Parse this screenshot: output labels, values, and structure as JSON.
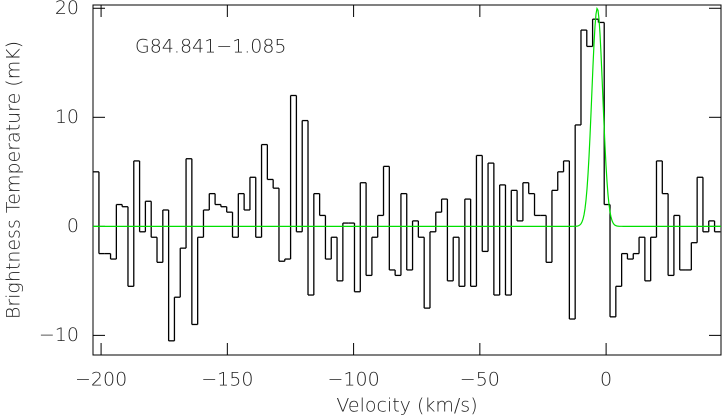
{
  "chart_data": {
    "type": "step",
    "annotation": "G84.841−1.085",
    "xlabel": "Velocity (km/s)",
    "ylabel": "Brightness Temperature (mK)",
    "xlim": [
      -203.2,
      45.5
    ],
    "ylim": [
      -11.8,
      20.3
    ],
    "xticks": [
      {
        "value": -200,
        "label": "−200"
      },
      {
        "value": -150,
        "label": "−150"
      },
      {
        "value": -100,
        "label": "−100"
      },
      {
        "value": -50,
        "label": "−50"
      },
      0
    ],
    "yticks": [
      {
        "value": -10,
        "label": "−10"
      },
      0,
      10,
      20
    ],
    "series": [
      {
        "color": "#000000",
        "x": [
          -202.0,
          -199.7,
          -197.4,
          -195.1,
          -192.8,
          -190.5,
          -188.2,
          -185.9,
          -183.6,
          -181.3,
          -179.0,
          -176.7,
          -174.4,
          -172.1,
          -169.8,
          -167.5,
          -165.2,
          -162.9,
          -160.6,
          -158.3,
          -156.0,
          -153.7,
          -151.4,
          -149.1,
          -146.8,
          -144.5,
          -142.2,
          -139.9,
          -137.6,
          -135.3,
          -133.0,
          -130.7,
          -128.4,
          -126.1,
          -123.8,
          -121.5,
          -119.2,
          -116.9,
          -114.6,
          -112.3,
          -110.0,
          -107.7,
          -105.4,
          -103.1,
          -100.8,
          -98.5,
          -96.2,
          -93.9,
          -91.6,
          -89.3,
          -87.0,
          -84.7,
          -82.4,
          -80.1,
          -77.8,
          -75.5,
          -73.2,
          -70.9,
          -68.6,
          -66.3,
          -64.0,
          -61.7,
          -59.4,
          -57.1,
          -54.8,
          -52.5,
          -50.2,
          -47.9,
          -45.6,
          -43.3,
          -41.0,
          -38.7,
          -36.4,
          -34.1,
          -31.8,
          -29.5,
          -27.2,
          -24.9,
          -22.6,
          -20.3,
          -18.0,
          -15.7,
          -13.4,
          -11.1,
          -8.8,
          -6.5,
          -4.2,
          -1.9,
          0.4,
          2.7,
          5.0,
          7.3,
          9.6,
          11.9,
          14.2,
          16.5,
          18.8,
          21.1,
          23.4,
          25.7,
          28.0,
          30.3,
          32.6,
          34.9,
          37.2,
          39.5,
          41.8,
          44.1
        ],
        "values": [
          5,
          -2.5,
          -2.5,
          -3,
          2,
          1.8,
          -5.5,
          6,
          -0.5,
          2.3,
          -1,
          -3.3,
          1.5,
          -10.5,
          -6.5,
          -2,
          6.2,
          -9,
          -1,
          1.5,
          3,
          2,
          1.8,
          1.3,
          -1,
          3,
          1.5,
          4.5,
          -1,
          7.5,
          4.3,
          3.5,
          -3.2,
          -3,
          12,
          -0.5,
          9.7,
          -6.3,
          3,
          1,
          -3,
          -1,
          -5,
          0.3,
          0.3,
          -6,
          4,
          -4.5,
          -1,
          1,
          5.5,
          -4,
          -4.5,
          3,
          -4,
          0.5,
          -1,
          -7.5,
          -0.5,
          1.3,
          2.5,
          -5,
          -1,
          -5.5,
          2.5,
          -5.5,
          6.5,
          -2.3,
          5.8,
          -6.3,
          3.8,
          -6.3,
          3.3,
          0.5,
          4,
          3,
          1,
          1,
          -3.3,
          3.3,
          5,
          6,
          -8.5,
          9.3,
          18,
          16.5,
          19,
          18.7,
          2,
          -8.3,
          -5.5,
          -2.5,
          -3,
          -2.5,
          -1,
          -5,
          -1,
          6,
          3,
          -4.5,
          1,
          -4,
          -4,
          -1.5,
          4.5,
          -0.5,
          0.5,
          -0.5
        ]
      }
    ],
    "fit": {
      "color": "#00e000",
      "amplitude": 20,
      "center": -3.5,
      "fwhm": 5.1
    }
  }
}
